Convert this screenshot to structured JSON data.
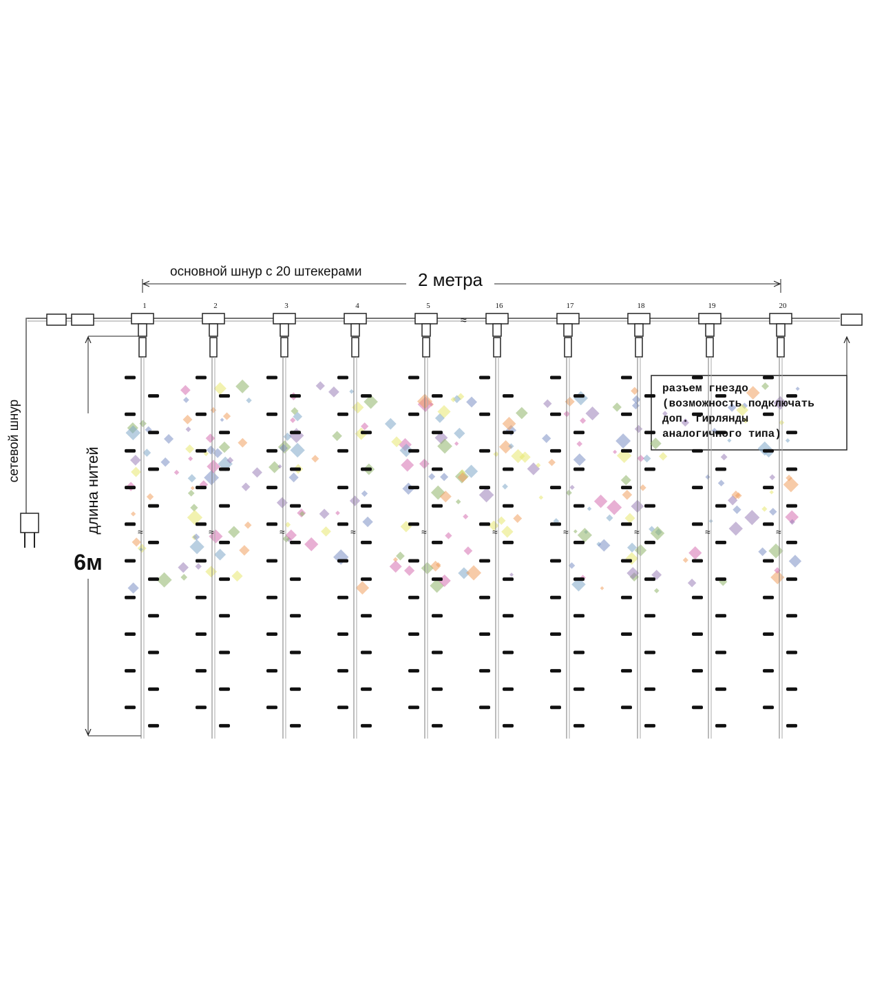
{
  "header": {
    "cord_label": "основной шнур с 20 штекерами",
    "width_label": "2 метра"
  },
  "plugs": [
    "1",
    "2",
    "3",
    "4",
    "5",
    "16",
    "17",
    "18",
    "19",
    "20"
  ],
  "power_cord_label": "сетевой шнур",
  "length": {
    "label": "длина нитей",
    "value_label": "6м"
  },
  "socket_note": {
    "lines": [
      "разъем гнездо",
      "(возможность подключать",
      "доп. гирлянды",
      "аналогичного типа)"
    ]
  }
}
